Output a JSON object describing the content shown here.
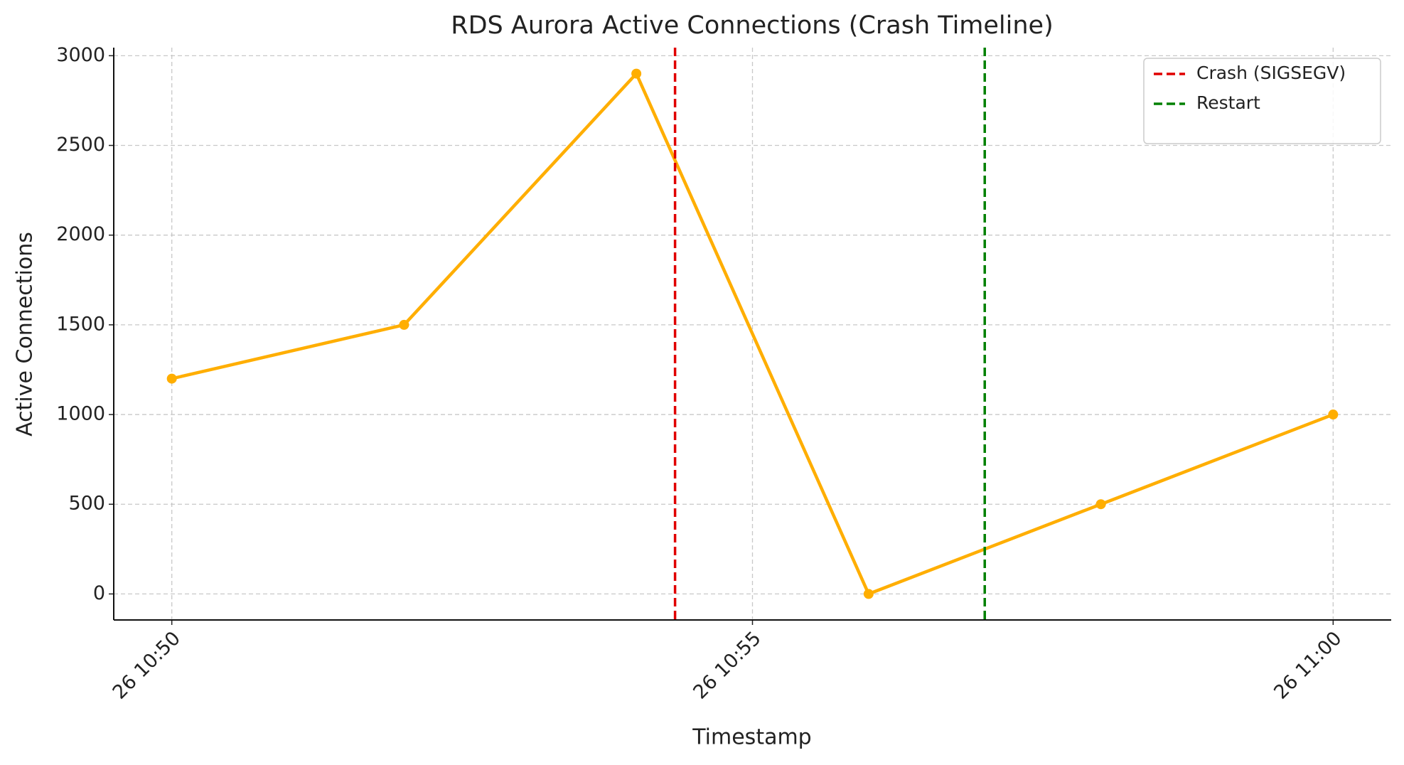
{
  "chart_data": {
    "type": "line",
    "title": "RDS Aurora Active Connections (Crash Timeline)",
    "xlabel": "Timestamp",
    "ylabel": "Active Connections",
    "x": [
      "26 10:50",
      "26 10:52",
      "26 10:54",
      "26 10:56",
      "26 10:58",
      "26 11:00"
    ],
    "series": [
      {
        "name": "Active Connections",
        "color": "#ffae00",
        "values": [
          1200,
          1500,
          2900,
          0,
          500,
          1000
        ]
      }
    ],
    "vlines": [
      {
        "name": "Crash (SIGSEGV)",
        "color": "#e00000",
        "x": "26 10:54:20"
      },
      {
        "name": "Restart",
        "color": "#008000",
        "x": "26 10:57"
      }
    ],
    "xlim": [
      "26 10:49:30",
      "26 11:00:30"
    ],
    "xticks": [
      "26 10:50",
      "26 10:55",
      "26 11:00"
    ],
    "ylim": [
      -145,
      3045
    ],
    "yticks": [
      0,
      500,
      1000,
      1500,
      2000,
      2500,
      3000
    ],
    "grid": true,
    "legend": "upper right"
  }
}
